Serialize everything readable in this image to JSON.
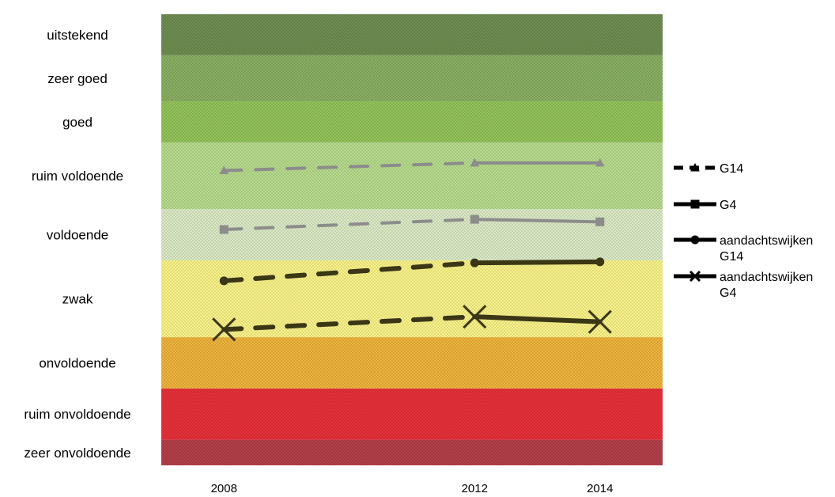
{
  "chart_data": {
    "type": "line",
    "title": "",
    "xlabel": "",
    "ylabel": "",
    "x_ticks": [
      "2008",
      "2012",
      "2014"
    ],
    "xlim": [
      2007,
      2015
    ],
    "ylim": [
      0,
      10
    ],
    "grid": false,
    "legend_position": "right",
    "bands": [
      {
        "label": "zeer onvoldoende",
        "from": 0.0,
        "to": 0.5,
        "color": "#b5404a"
      },
      {
        "label": "ruim onvoldoende",
        "from": 0.5,
        "to": 1.5,
        "color": "#e8303a"
      },
      {
        "label": "onvoldoende",
        "from": 1.5,
        "to": 2.5,
        "color": "#f0b43c"
      },
      {
        "label": "zwak",
        "from": 2.5,
        "to": 4.0,
        "color": "#fbf48a"
      },
      {
        "label": "voldoende",
        "from": 4.0,
        "to": 5.0,
        "color": "#dcebc6"
      },
      {
        "label": "ruim voldoende",
        "from": 5.0,
        "to": 6.3,
        "color": "#b8dc8e"
      },
      {
        "label": "goed",
        "from": 6.3,
        "to": 7.1,
        "color": "#94c45a"
      },
      {
        "label": "zeer goed",
        "from": 7.1,
        "to": 8.0,
        "color": "#89b063"
      },
      {
        "label": "uitstekend",
        "from": 8.0,
        "to": 8.8,
        "color": "#6f8e52"
      }
    ],
    "series": [
      {
        "name": "G14",
        "marker": "triangle",
        "x": [
          2008,
          2012,
          2014
        ],
        "y": [
          5.75,
          5.9,
          5.9
        ]
      },
      {
        "name": "G4",
        "marker": "square",
        "x": [
          2008,
          2012,
          2014
        ],
        "y": [
          4.6,
          4.8,
          4.75
        ]
      },
      {
        "name": "aandachtswijken G14",
        "marker": "circle",
        "x": [
          2008,
          2012,
          2014
        ],
        "y": [
          3.6,
          3.95,
          3.97
        ]
      },
      {
        "name": "aandachtswijken G4",
        "marker": "cross",
        "x": [
          2008,
          2012,
          2014
        ],
        "y": [
          2.65,
          2.9,
          2.8
        ]
      }
    ]
  }
}
